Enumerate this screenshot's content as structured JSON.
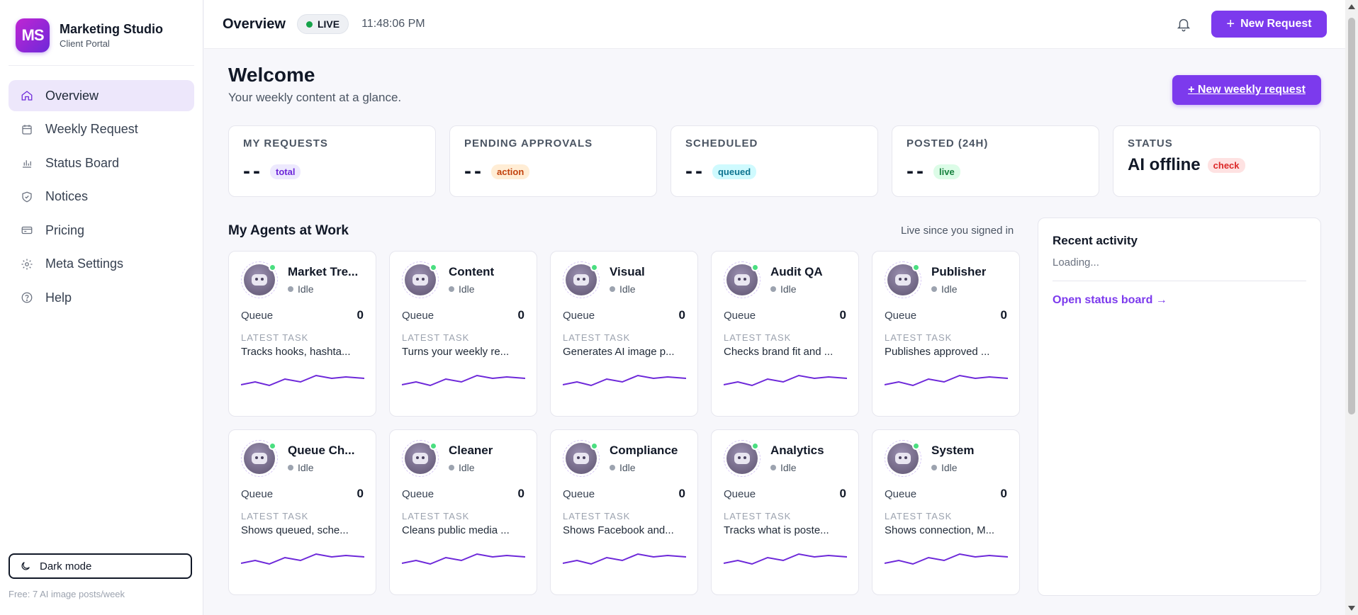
{
  "brand": {
    "logo_text": "MS",
    "title": "Marketing Studio",
    "subtitle": "Client Portal"
  },
  "sidebar": {
    "items": [
      {
        "label": "Overview",
        "icon": "home-icon",
        "active": true
      },
      {
        "label": "Weekly Request",
        "icon": "calendar-icon"
      },
      {
        "label": "Status Board",
        "icon": "bar-chart-icon"
      },
      {
        "label": "Notices",
        "icon": "shield-icon"
      },
      {
        "label": "Pricing",
        "icon": "card-icon"
      },
      {
        "label": "Meta Settings",
        "icon": "gear-icon"
      },
      {
        "label": "Help",
        "icon": "help-icon"
      }
    ],
    "dark_mode_label": "Dark mode",
    "free_note": "Free: 7 AI image posts/week"
  },
  "topbar": {
    "title": "Overview",
    "live_label": "LIVE",
    "clock": "11:48:06 PM",
    "new_request_label": "New Request",
    "new_request_plus": "+"
  },
  "main": {
    "welcome_title": "Welcome",
    "welcome_sub": "Your weekly content at a glance.",
    "weekly_button": "+ New weekly request",
    "stats": [
      {
        "label": "MY REQUESTS",
        "value": "--",
        "badge": "total",
        "badge_color": "#6d28d9"
      },
      {
        "label": "PENDING APPROVALS",
        "value": "--",
        "badge": "action",
        "badge_color": "#c2410c"
      },
      {
        "label": "SCHEDULED",
        "value": "--",
        "badge": "queued",
        "badge_color": "#0e7490"
      },
      {
        "label": "POSTED (24H)",
        "value": "--",
        "badge": "live",
        "badge_color": "#15803d"
      },
      {
        "label": "STATUS",
        "value": "AI offline",
        "badge": "check",
        "badge_color": "#dc2626"
      }
    ],
    "agents_title": "My Agents at Work",
    "agents_note": "Live since you signed in",
    "queue_label": "Queue",
    "latest_label": "LATEST TASK",
    "agents": [
      {
        "name": "Market Tre...",
        "status": "Idle",
        "queue": "0",
        "task": "Tracks hooks, hashta..."
      },
      {
        "name": "Content",
        "status": "Idle",
        "queue": "0",
        "task": "Turns your weekly re..."
      },
      {
        "name": "Visual",
        "status": "Idle",
        "queue": "0",
        "task": "Generates AI image p..."
      },
      {
        "name": "Audit QA",
        "status": "Idle",
        "queue": "0",
        "task": "Checks brand fit and ..."
      },
      {
        "name": "Publisher",
        "status": "Idle",
        "queue": "0",
        "task": "Publishes approved ..."
      },
      {
        "name": "Queue Ch...",
        "status": "Idle",
        "queue": "0",
        "task": "Shows queued, sche..."
      },
      {
        "name": "Cleaner",
        "status": "Idle",
        "queue": "0",
        "task": "Cleans public media ..."
      },
      {
        "name": "Compliance",
        "status": "Idle",
        "queue": "0",
        "task": "Shows Facebook and..."
      },
      {
        "name": "Analytics",
        "status": "Idle",
        "queue": "0",
        "task": "Tracks what is poste..."
      },
      {
        "name": "System",
        "status": "Idle",
        "queue": "0",
        "task": "Shows connection, M..."
      }
    ],
    "activity": {
      "title": "Recent activity",
      "loading": "Loading...",
      "link": "Open status board →"
    }
  },
  "colors": {
    "accent": "#7c3aed",
    "live": "#16a34a",
    "sparkline": "#6d28d9"
  }
}
